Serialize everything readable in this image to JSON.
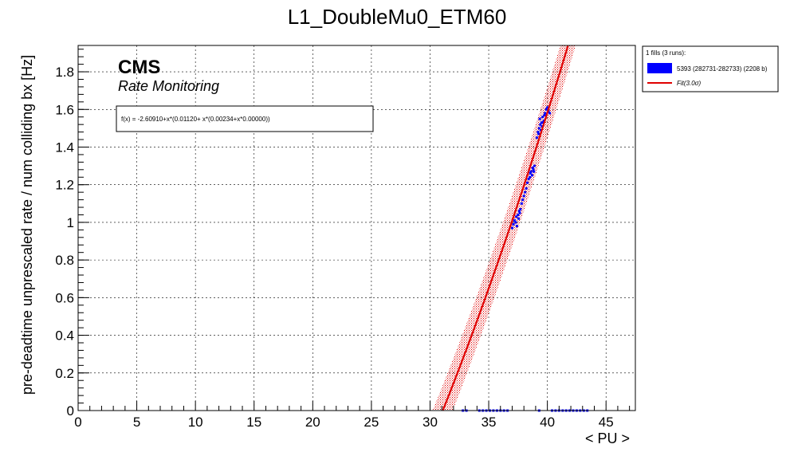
{
  "chart_data": {
    "type": "scatter",
    "title": "L1_DoubleMu0_ETM60",
    "xlabel": "< PU >",
    "ylabel": "pre-deadtime unprescaled rate / num colliding bx [Hz]",
    "xlim": [
      0,
      47.5
    ],
    "ylim": [
      0,
      1.94
    ],
    "x_ticks": [
      0,
      5,
      10,
      15,
      20,
      25,
      30,
      35,
      40,
      45
    ],
    "y_ticks": [
      0,
      0.2,
      0.4,
      0.6,
      0.8,
      1,
      1.2,
      1.4,
      1.6,
      1.8
    ],
    "grid": true,
    "legend_position": "top-right-outside",
    "legend_header": "1 fills (3 runs):",
    "cms_label": "CMS",
    "subtitle": "Rate Monitoring",
    "fit_text": "f(x) = -2.60910+x*(0.01120+ x*(0.00234+x*0.00000))",
    "fit": {
      "c0": -2.6091,
      "c1": 0.0112,
      "c2": 0.00234,
      "c3": 0.0,
      "sigma": 0.045,
      "band_label": "Fit(3.0σ)"
    },
    "series": [
      {
        "name": "5393 (282731-282733) (2208 b)",
        "color": "#0000ff",
        "points": [
          [
            37.0,
            0.97
          ],
          [
            37.1,
            0.99
          ],
          [
            37.2,
            1.01
          ],
          [
            37.3,
            1.0
          ],
          [
            37.35,
            1.03
          ],
          [
            37.4,
            0.98
          ],
          [
            37.5,
            1.04
          ],
          [
            37.6,
            1.06
          ],
          [
            37.55,
            1.02
          ],
          [
            37.7,
            1.07
          ],
          [
            37.65,
            1.05
          ],
          [
            37.8,
            1.1
          ],
          [
            37.9,
            1.12
          ],
          [
            38.0,
            1.14
          ],
          [
            38.1,
            1.16
          ],
          [
            38.2,
            1.18
          ],
          [
            38.3,
            1.21
          ],
          [
            38.4,
            1.23
          ],
          [
            38.5,
            1.24
          ],
          [
            38.55,
            1.26
          ],
          [
            38.6,
            1.27
          ],
          [
            38.7,
            1.25
          ],
          [
            38.8,
            1.28
          ],
          [
            38.9,
            1.3
          ],
          [
            38.75,
            1.29
          ],
          [
            38.85,
            1.27
          ],
          [
            39.1,
            1.45
          ],
          [
            39.2,
            1.48
          ],
          [
            39.3,
            1.5
          ],
          [
            39.4,
            1.52
          ],
          [
            39.35,
            1.55
          ],
          [
            39.5,
            1.53
          ],
          [
            39.6,
            1.56
          ],
          [
            39.7,
            1.54
          ],
          [
            39.45,
            1.49
          ],
          [
            39.55,
            1.51
          ],
          [
            39.8,
            1.58
          ],
          [
            39.9,
            1.6
          ],
          [
            40.0,
            1.61
          ],
          [
            40.1,
            1.59
          ],
          [
            39.75,
            1.57
          ],
          [
            40.2,
            1.58
          ],
          [
            39.65,
            1.53
          ],
          [
            39.25,
            1.47
          ],
          [
            32.8,
            0.0
          ],
          [
            33.1,
            0.0
          ],
          [
            34.2,
            0.0
          ],
          [
            34.5,
            0.0
          ],
          [
            34.8,
            0.0
          ],
          [
            35.1,
            0.0
          ],
          [
            35.4,
            0.0
          ],
          [
            35.7,
            0.0
          ],
          [
            36.0,
            0.0
          ],
          [
            36.3,
            0.0
          ],
          [
            36.6,
            0.0
          ],
          [
            39.3,
            0.0
          ],
          [
            40.4,
            0.0
          ],
          [
            40.7,
            0.0
          ],
          [
            41.0,
            0.0
          ],
          [
            41.3,
            0.0
          ],
          [
            41.6,
            0.0
          ],
          [
            41.9,
            0.0
          ],
          [
            42.2,
            0.0
          ],
          [
            42.5,
            0.0
          ],
          [
            42.8,
            0.0
          ],
          [
            43.1,
            0.0
          ],
          [
            43.4,
            0.0
          ]
        ]
      }
    ]
  }
}
